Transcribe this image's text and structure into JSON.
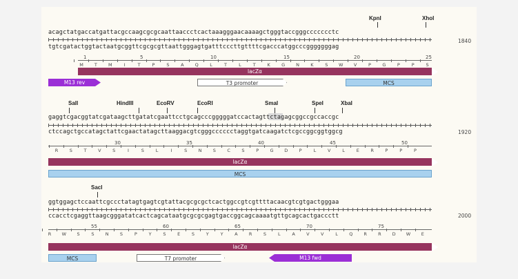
{
  "blocks": [
    {
      "top_seq": "acagctatgaccatgattacgccaagcgcgcaattaaccctcactaaagggaacaaaagctgggtaccgggccccccctc",
      "bottom_seq": "tgtcgatactggtactaatgcggttcgcgcgttaattgggagtgatttcccttgttttcgacccatggcccgggggggag",
      "position": "1840",
      "enzymes": [
        "KpnI",
        "XhoI"
      ],
      "aa_numbers": [
        "1",
        "5",
        "10",
        "15",
        "20",
        "25"
      ],
      "aa": [
        "M",
        "T",
        "M",
        "I",
        "T",
        "P",
        "S",
        "A",
        "Q",
        "L",
        "T",
        "L",
        "T",
        "K",
        "G",
        "N",
        "K",
        "S",
        "W",
        "V",
        "P",
        "G",
        "P",
        "P",
        "S"
      ],
      "features": [
        "lacZα",
        "M13 rev",
        "T3 promoter",
        "MCS"
      ]
    },
    {
      "top_seq": "gaggtcgacggtatcgataagcttgatatcgaattcctgcagcccgggggatccactagttctagagcggccgccaccgc",
      "bottom_seq": "ctccagctgccatagctattcgaactatagcttaaggacgtcgggcccccctaggtgatcaagatctcgccggcggtggcg",
      "position": "1920",
      "enzymes": [
        "SalI",
        "HindIII",
        "EcoRV",
        "EcoRI",
        "SmaI",
        "SpeI",
        "XbaI"
      ],
      "aa_numbers": [
        "30",
        "35",
        "40",
        "45",
        "50"
      ],
      "aa": [
        "R",
        "S",
        "T",
        "V",
        "S",
        "I",
        "S",
        "L",
        "I",
        "S",
        "N",
        "S",
        "C",
        "S",
        "P",
        "G",
        "D",
        "P",
        "L",
        "V",
        "L",
        "E",
        "R",
        "P",
        "P",
        "P"
      ],
      "features": [
        "lacZα",
        "MCS"
      ]
    },
    {
      "top_seq": "ggtggagctccaattcgccctatagtgagtcgtattacgcgcgctcactggccgtcgttttacaacgtcgtgactgggaa",
      "bottom_seq": "ccacctcgaggttaagcgggatatcactcagcataatgcgcgcgagtgaccggcagcaaaatgttgcagcactgaccctt",
      "position": "2000",
      "enzymes": [
        "SacI"
      ],
      "aa_numbers": [
        "55",
        "60",
        "65",
        "70",
        "75"
      ],
      "aa": [
        "R",
        "W",
        "S",
        "S",
        "N",
        "S",
        "P",
        "Y",
        "S",
        "E",
        "S",
        "Y",
        "Y",
        "A",
        "R",
        "S",
        "L",
        "A",
        "V",
        "V",
        "L",
        "Q",
        "R",
        "R",
        "D",
        "W",
        "E"
      ],
      "features": [
        "lacZα",
        "MCS",
        "T7 promoter",
        "M13 fwd"
      ]
    }
  ]
}
